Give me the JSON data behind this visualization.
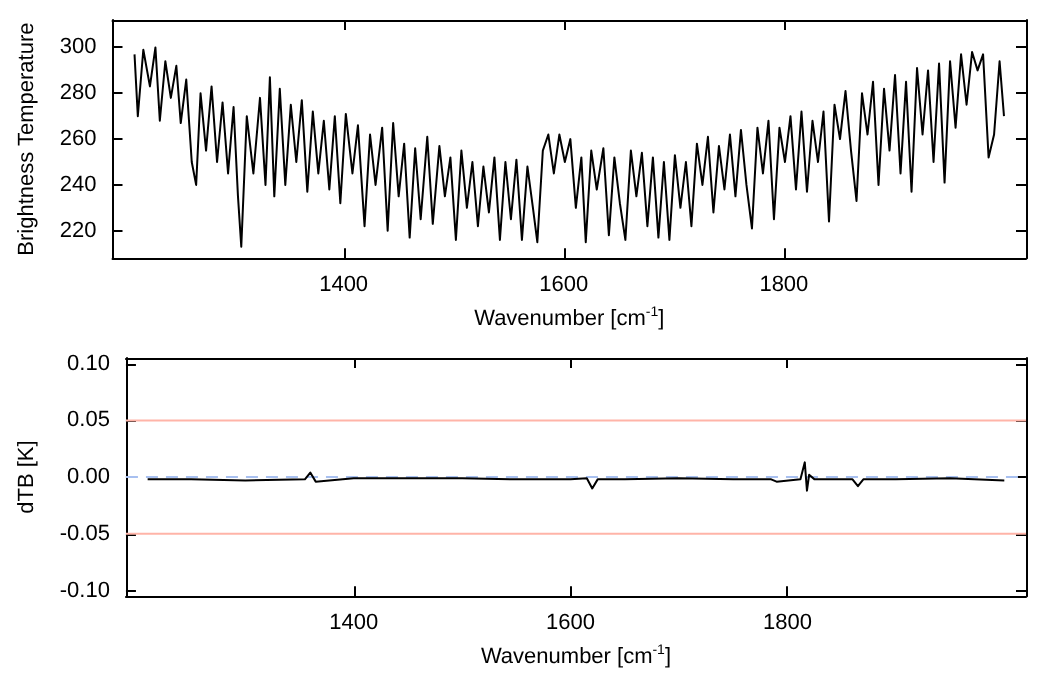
{
  "chart_data": [
    {
      "type": "line",
      "xlabel": "Wavenumber [cm$^{-1}$]",
      "ylabel": "Brightness Temperature",
      "xlim": [
        1190,
        2020
      ],
      "xticks": [
        1400,
        1600,
        1800
      ],
      "ylim": [
        208,
        312
      ],
      "yticks": [
        220,
        240,
        260,
        280,
        300
      ],
      "grid": false,
      "marker": "none",
      "line_style": "solid",
      "series": [
        {
          "color": "#000000",
          "x": [
            1210,
            1213,
            1218,
            1224,
            1229,
            1233,
            1238,
            1243,
            1248,
            1252,
            1257,
            1262,
            1266,
            1270,
            1275,
            1280,
            1285,
            1290,
            1295,
            1300,
            1304,
            1307,
            1312,
            1318,
            1324,
            1329,
            1333,
            1337,
            1342,
            1347,
            1352,
            1357,
            1362,
            1367,
            1372,
            1377,
            1382,
            1387,
            1392,
            1397,
            1402,
            1408,
            1413,
            1419,
            1424,
            1429,
            1435,
            1440,
            1445,
            1450,
            1455,
            1460,
            1465,
            1470,
            1476,
            1481,
            1487,
            1492,
            1497,
            1502,
            1507,
            1512,
            1517,
            1522,
            1527,
            1532,
            1537,
            1542,
            1547,
            1552,
            1557,
            1562,
            1567,
            1572,
            1576,
            1581,
            1586,
            1591,
            1596,
            1601,
            1606,
            1611,
            1616,
            1620,
            1625,
            1630,
            1636,
            1641,
            1646,
            1651,
            1656,
            1661,
            1666,
            1671,
            1676,
            1681,
            1686,
            1691,
            1696,
            1701,
            1706,
            1711,
            1716,
            1721,
            1726,
            1731,
            1736,
            1741,
            1746,
            1751,
            1756,
            1761,
            1766,
            1771,
            1776,
            1781,
            1786,
            1791,
            1796,
            1801,
            1806,
            1811,
            1816,
            1821,
            1826,
            1831,
            1836,
            1841,
            1846,
            1851,
            1856,
            1861,
            1866,
            1871,
            1876,
            1881,
            1886,
            1891,
            1896,
            1901,
            1906,
            1911,
            1916,
            1921,
            1926,
            1931,
            1936,
            1941,
            1946,
            1951,
            1956,
            1961,
            1966,
            1971,
            1976,
            1981,
            1986,
            1991,
            1996,
            2000
          ],
          "values": [
            297,
            270,
            299,
            283,
            300,
            268,
            294,
            278,
            292,
            267,
            286,
            250,
            240,
            280,
            255,
            283,
            250,
            276,
            245,
            274,
            235,
            213,
            270,
            245,
            278,
            240,
            287,
            235,
            282,
            240,
            275,
            250,
            277,
            237,
            272,
            245,
            268,
            238,
            270,
            232,
            271,
            245,
            266,
            222,
            262,
            240,
            265,
            220,
            267,
            235,
            258,
            217,
            256,
            225,
            261,
            223,
            257,
            235,
            252,
            216,
            255,
            230,
            250,
            222,
            248,
            228,
            252,
            216,
            250,
            225,
            251,
            216,
            248,
            230,
            215,
            255,
            262,
            245,
            262,
            250,
            260,
            230,
            252,
            215,
            255,
            238,
            256,
            218,
            252,
            232,
            216,
            255,
            235,
            254,
            222,
            252,
            217,
            250,
            216,
            253,
            230,
            250,
            222,
            258,
            240,
            261,
            228,
            257,
            238,
            262,
            235,
            264,
            240,
            221,
            265,
            245,
            268,
            225,
            265,
            250,
            270,
            238,
            272,
            237,
            268,
            250,
            272,
            224,
            275,
            260,
            281,
            255,
            233,
            280,
            262,
            285,
            240,
            282,
            255,
            288,
            245,
            285,
            237,
            291,
            262,
            290,
            250,
            293,
            241,
            294,
            265,
            297,
            275,
            298,
            290,
            297,
            252,
            262,
            294,
            270
          ]
        }
      ]
    },
    {
      "type": "line",
      "xlabel": "Wavenumber [cm$^{-1}$]",
      "ylabel": "dTB [K]",
      "xlim": [
        1190,
        2020
      ],
      "xticks": [
        1400,
        1600,
        1800
      ],
      "ylim": [
        -0.105,
        0.105
      ],
      "yticks": [
        {
          "value": -0.1,
          "label": "-0.10"
        },
        {
          "value": -0.05,
          "label": "-0.05"
        },
        {
          "value": 0,
          "label": "0.00"
        },
        {
          "value": 0.05,
          "label": "0.05"
        },
        {
          "value": 0.1,
          "label": "0.10"
        }
      ],
      "grid": false,
      "marker": "none",
      "line_style": "solid",
      "ref_lines": [
        {
          "axis": "y",
          "value": 0.05,
          "label": null,
          "color": "#ffb4a8",
          "line_style": "solid"
        },
        {
          "axis": "y",
          "value": -0.05,
          "label": null,
          "color": "#ffb4a8",
          "line_style": "solid"
        },
        {
          "axis": "y",
          "value": 0,
          "label": null,
          "color": "#a8c0f0",
          "line_style": "dashed"
        }
      ],
      "series": [
        {
          "color": "#000000",
          "x": [
            1210,
            1250,
            1300,
            1355,
            1360,
            1365,
            1400,
            1450,
            1500,
            1550,
            1600,
            1615,
            1620,
            1625,
            1650,
            1700,
            1750,
            1785,
            1790,
            1812,
            1816,
            1818,
            1820,
            1825,
            1860,
            1865,
            1870,
            1900,
            1950,
            2000
          ],
          "values": [
            -0.002,
            -0.002,
            -0.003,
            -0.002,
            0.004,
            -0.004,
            -0.001,
            -0.001,
            -0.001,
            -0.002,
            -0.002,
            -0.001,
            -0.01,
            -0.002,
            -0.002,
            -0.001,
            -0.002,
            -0.002,
            -0.004,
            -0.002,
            0.013,
            -0.012,
            0.002,
            -0.002,
            -0.002,
            -0.008,
            -0.002,
            -0.002,
            -0.001,
            -0.003
          ]
        }
      ]
    }
  ]
}
